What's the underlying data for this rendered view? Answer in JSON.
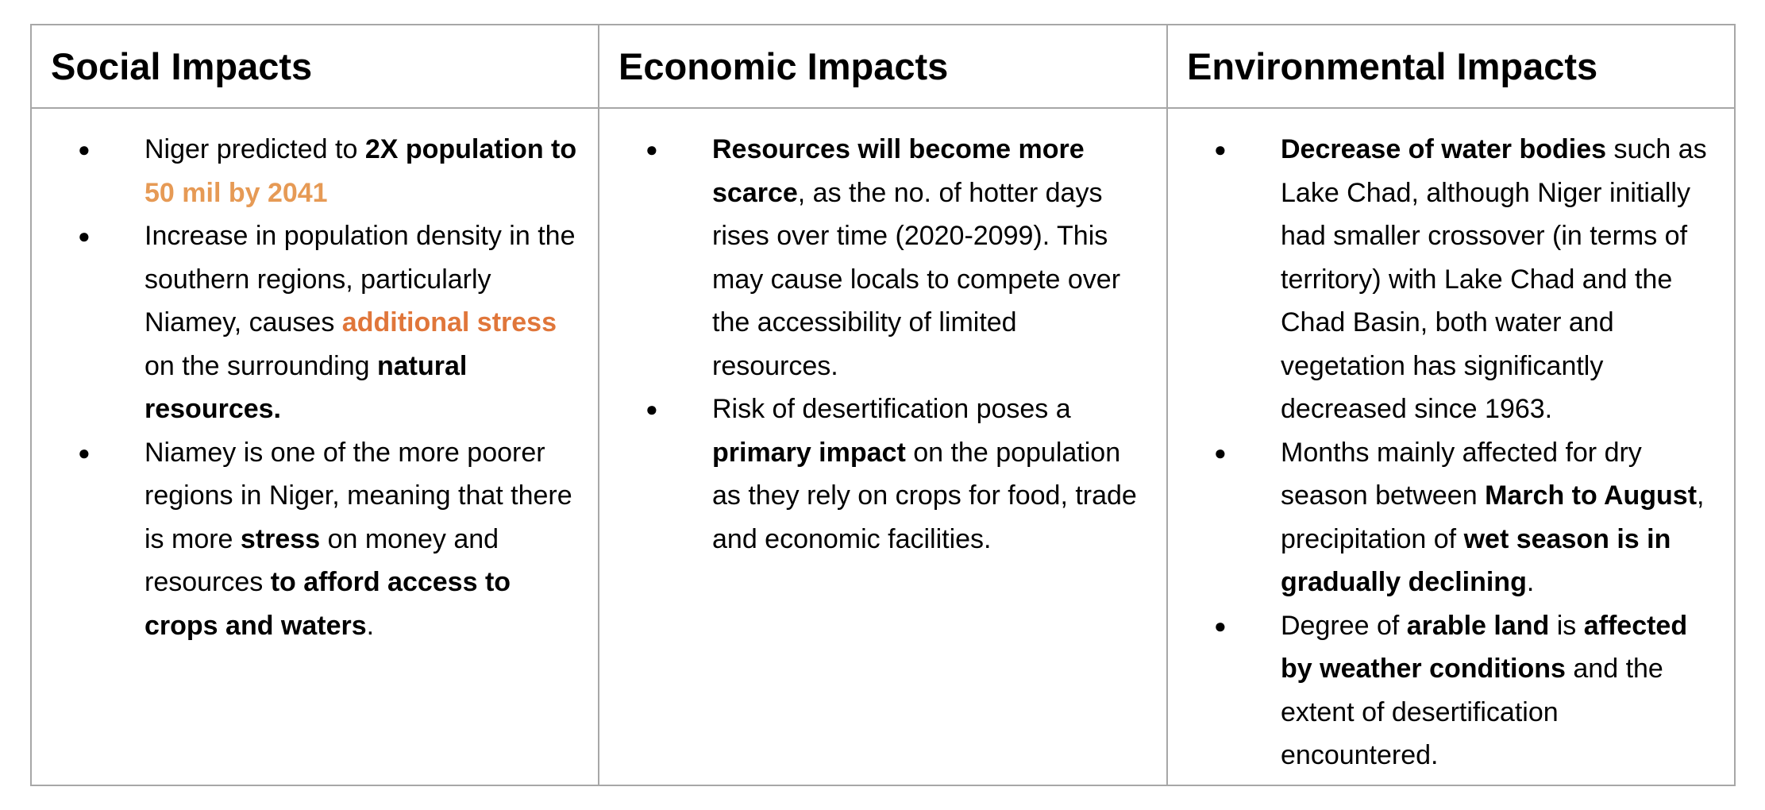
{
  "headers": {
    "social": "Social Impacts",
    "economic": "Economic Impacts",
    "environmental": "Environmental Impacts"
  },
  "colors": {
    "border": "#a7a7a7",
    "accent_light": "#e69a55",
    "accent": "#e0763a"
  },
  "bullet_icon": "filled-circle-bullet",
  "social": [
    {
      "segments": [
        {
          "t": "Niger predicted to ",
          "s": "n"
        },
        {
          "t": "2X population to ",
          "s": "b"
        },
        {
          "t": "50 mil by 2041",
          "s": "ol"
        }
      ]
    },
    {
      "segments": [
        {
          "t": "Increase in population density in the southern regions, particularly Niamey, causes ",
          "s": "n"
        },
        {
          "t": "additional stress",
          "s": "o"
        },
        {
          "t": " on the surrounding ",
          "s": "n"
        },
        {
          "t": "natural resources.",
          "s": "b"
        }
      ]
    },
    {
      "segments": [
        {
          "t": "Niamey is one of the more poorer regions in Niger, meaning that there is more ",
          "s": "n"
        },
        {
          "t": "stress",
          "s": "b"
        },
        {
          "t": " on money and resources ",
          "s": "n"
        },
        {
          "t": "to afford access to crops and waters",
          "s": "b"
        },
        {
          "t": ".",
          "s": "n"
        }
      ]
    }
  ],
  "economic": [
    {
      "segments": [
        {
          "t": "Resources will become more scarce",
          "s": "b"
        },
        {
          "t": ", as the no. of hotter days rises over time (2020-2099). This may cause locals to compete over the accessibility of limited resources.",
          "s": "n"
        }
      ]
    },
    {
      "segments": [
        {
          "t": "Risk of desertification poses a ",
          "s": "n"
        },
        {
          "t": "primary impact",
          "s": "b"
        },
        {
          "t": " on the population as they rely on crops for food, trade and economic facilities.",
          "s": "n"
        }
      ]
    }
  ],
  "environmental": [
    {
      "segments": [
        {
          "t": "Decrease of water bodies",
          "s": "b"
        },
        {
          "t": " such as Lake Chad, although Niger initially had smaller crossover (in terms of territory) with Lake Chad and the Chad Basin, both water and vegetation has significantly decreased since 1963.",
          "s": "n"
        }
      ]
    },
    {
      "segments": [
        {
          "t": "Months mainly affected for dry season between ",
          "s": "n"
        },
        {
          "t": "March to August",
          "s": "b"
        },
        {
          "t": ", precipitation of ",
          "s": "n"
        },
        {
          "t": "wet season is in gradually declining",
          "s": "b"
        },
        {
          "t": ".",
          "s": "n"
        }
      ]
    },
    {
      "segments": [
        {
          "t": "Degree of ",
          "s": "n"
        },
        {
          "t": "arable land",
          "s": "b"
        },
        {
          "t": " is ",
          "s": "n"
        },
        {
          "t": "affected by weather conditions",
          "s": "b"
        },
        {
          "t": " and the extent of desertification encountered.",
          "s": "n"
        }
      ]
    }
  ]
}
